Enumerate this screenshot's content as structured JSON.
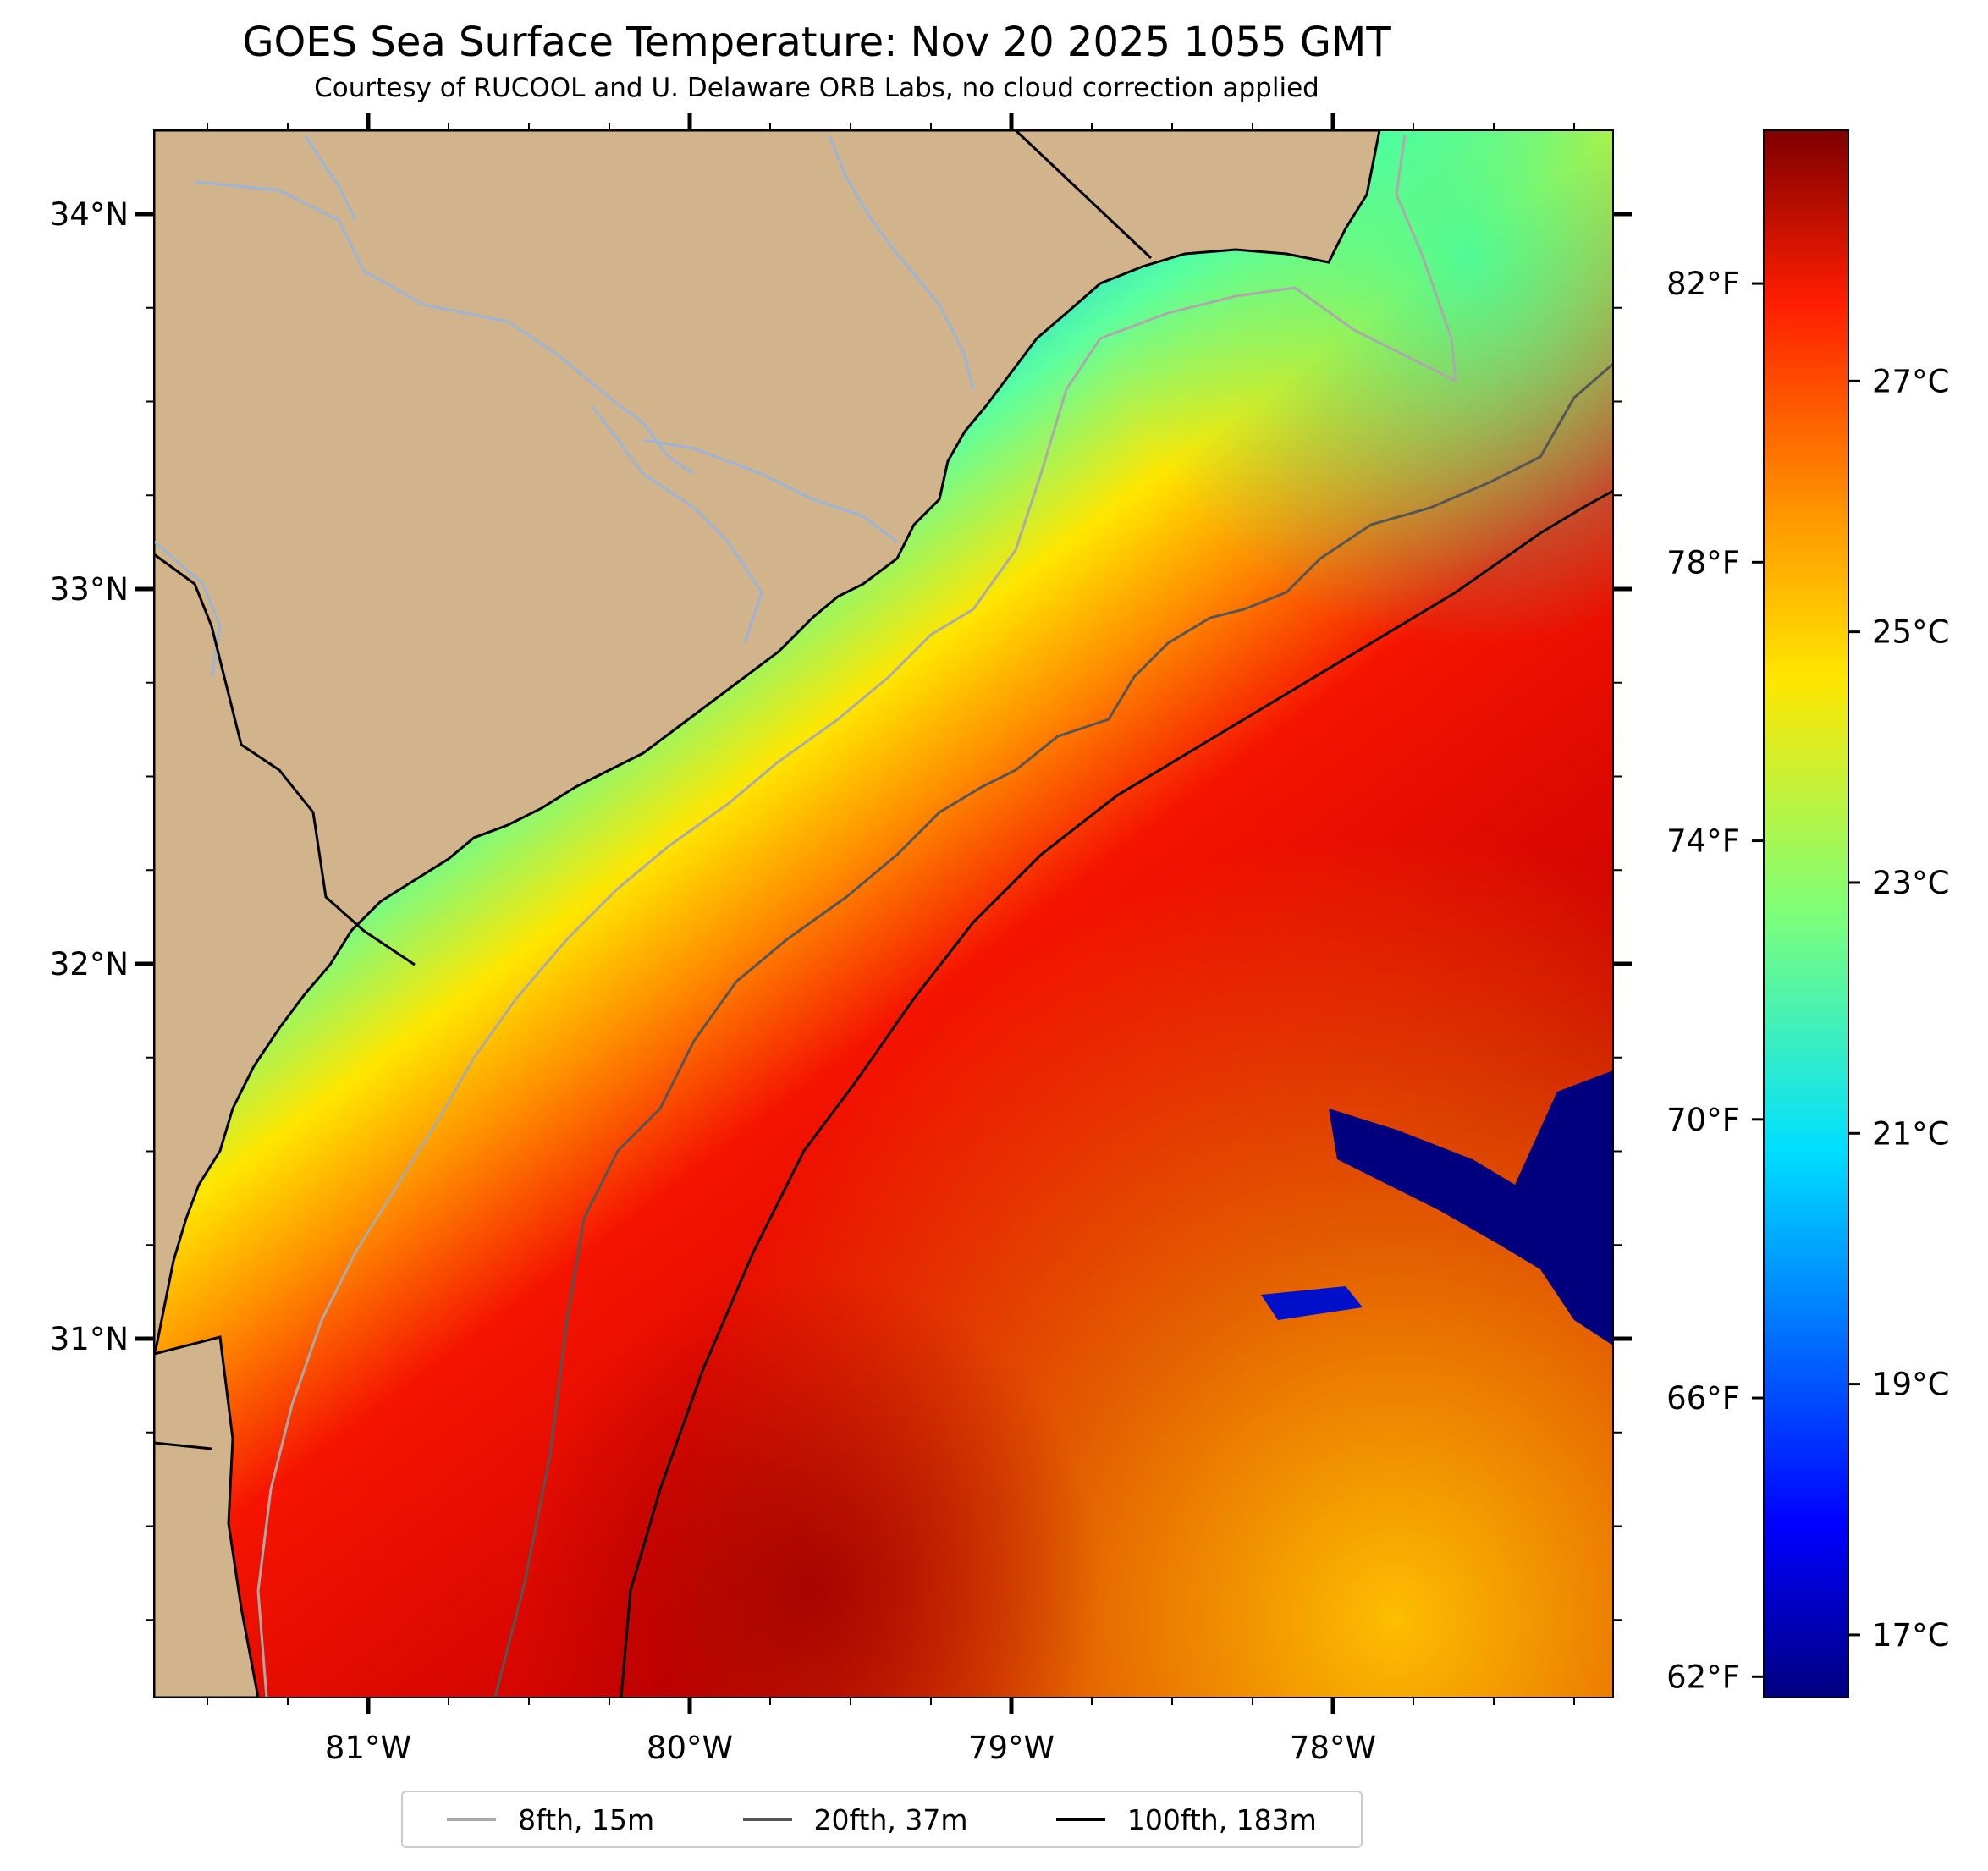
{
  "title": "GOES Sea Surface Temperature: Nov 20 2025 1055 GMT",
  "subtitle": "Courtesy of RUCOOL and U. Delaware ORB Labs, no cloud correction applied",
  "map": {
    "lat_ticks": [
      {
        "value": 34,
        "label": "34°N"
      },
      {
        "value": 33,
        "label": "33°N"
      },
      {
        "value": 32,
        "label": "32°N"
      },
      {
        "value": 31,
        "label": "31°N"
      }
    ],
    "lon_ticks": [
      {
        "value": -81,
        "label": "81°W"
      },
      {
        "value": -80,
        "label": "80°W"
      },
      {
        "value": -79,
        "label": "79°W"
      },
      {
        "value": -78,
        "label": "78°W"
      }
    ],
    "colors": {
      "land": "#d2b48c",
      "river": "#9cb4d6",
      "coast": "#000000"
    }
  },
  "colorbar": {
    "range_c": [
      16.5,
      29.0
    ],
    "celsius_ticks": [
      {
        "value": 17,
        "label": "17°C"
      },
      {
        "value": 19,
        "label": "19°C"
      },
      {
        "value": 21,
        "label": "21°C"
      },
      {
        "value": 23,
        "label": "23°C"
      },
      {
        "value": 25,
        "label": "25°C"
      },
      {
        "value": 27,
        "label": "27°C"
      }
    ],
    "fahrenheit_ticks": [
      {
        "value": 62,
        "label": "62°F"
      },
      {
        "value": 66,
        "label": "66°F"
      },
      {
        "value": 70,
        "label": "70°F"
      },
      {
        "value": 74,
        "label": "74°F"
      },
      {
        "value": 78,
        "label": "78°F"
      },
      {
        "value": 82,
        "label": "82°F"
      }
    ],
    "colormap": "jet"
  },
  "legend": [
    {
      "label": "8fth, 15m",
      "color": "#aaaaaa"
    },
    {
      "label": "20fth, 37m",
      "color": "#555555"
    },
    {
      "label": "100fth, 183m",
      "color": "#000000"
    }
  ]
}
